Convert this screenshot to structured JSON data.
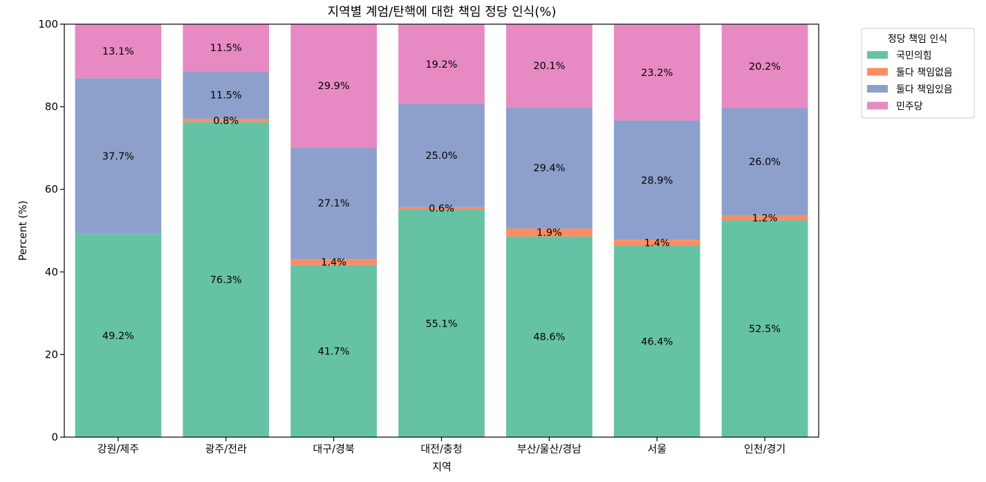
{
  "chart_data": {
    "type": "bar",
    "stacked": true,
    "title": "지역별 계엄/탄핵에 대한 책임 정당 인식(%)",
    "xlabel": "지역",
    "ylabel": "Percent (%)",
    "ylim": [
      0,
      100
    ],
    "yticks": [
      "0",
      "20",
      "40",
      "60",
      "80",
      "100"
    ],
    "grid": false,
    "legend": {
      "title": "정당 책임 인식",
      "placement": "outside-top-right"
    },
    "categories": [
      "강원/제주",
      "광주/전라",
      "대구/경북",
      "대전/충청",
      "부산/울산/경남",
      "서울",
      "인천/경기"
    ],
    "series": [
      {
        "name": "국민의힘",
        "color": "#66c2a5",
        "values": [
          49.2,
          76.3,
          41.7,
          55.1,
          48.6,
          46.4,
          52.5
        ],
        "labels": [
          "49.2%",
          "76.3%",
          "41.7%",
          "55.1%",
          "48.6%",
          "46.4%",
          "52.5%"
        ]
      },
      {
        "name": "둘다 책임없음",
        "color": "#fc8d62",
        "values": [
          0.0,
          0.8,
          1.4,
          0.6,
          1.9,
          1.4,
          1.2
        ],
        "labels": [
          "",
          "0.8%",
          "1.4%",
          "0.6%",
          "1.9%",
          "1.4%",
          "1.2%"
        ]
      },
      {
        "name": "둘다 책임있음",
        "color": "#8da0cb",
        "values": [
          37.7,
          11.5,
          27.1,
          25.0,
          29.4,
          28.9,
          26.0
        ],
        "labels": [
          "37.7%",
          "11.5%",
          "27.1%",
          "25.0%",
          "29.4%",
          "28.9%",
          "26.0%"
        ]
      },
      {
        "name": "민주당",
        "color": "#e78ac3",
        "values": [
          13.1,
          11.5,
          29.9,
          19.2,
          20.1,
          23.2,
          20.2
        ],
        "labels": [
          "13.1%",
          "11.5%",
          "29.9%",
          "19.2%",
          "20.1%",
          "23.2%",
          "20.2%"
        ]
      }
    ]
  }
}
